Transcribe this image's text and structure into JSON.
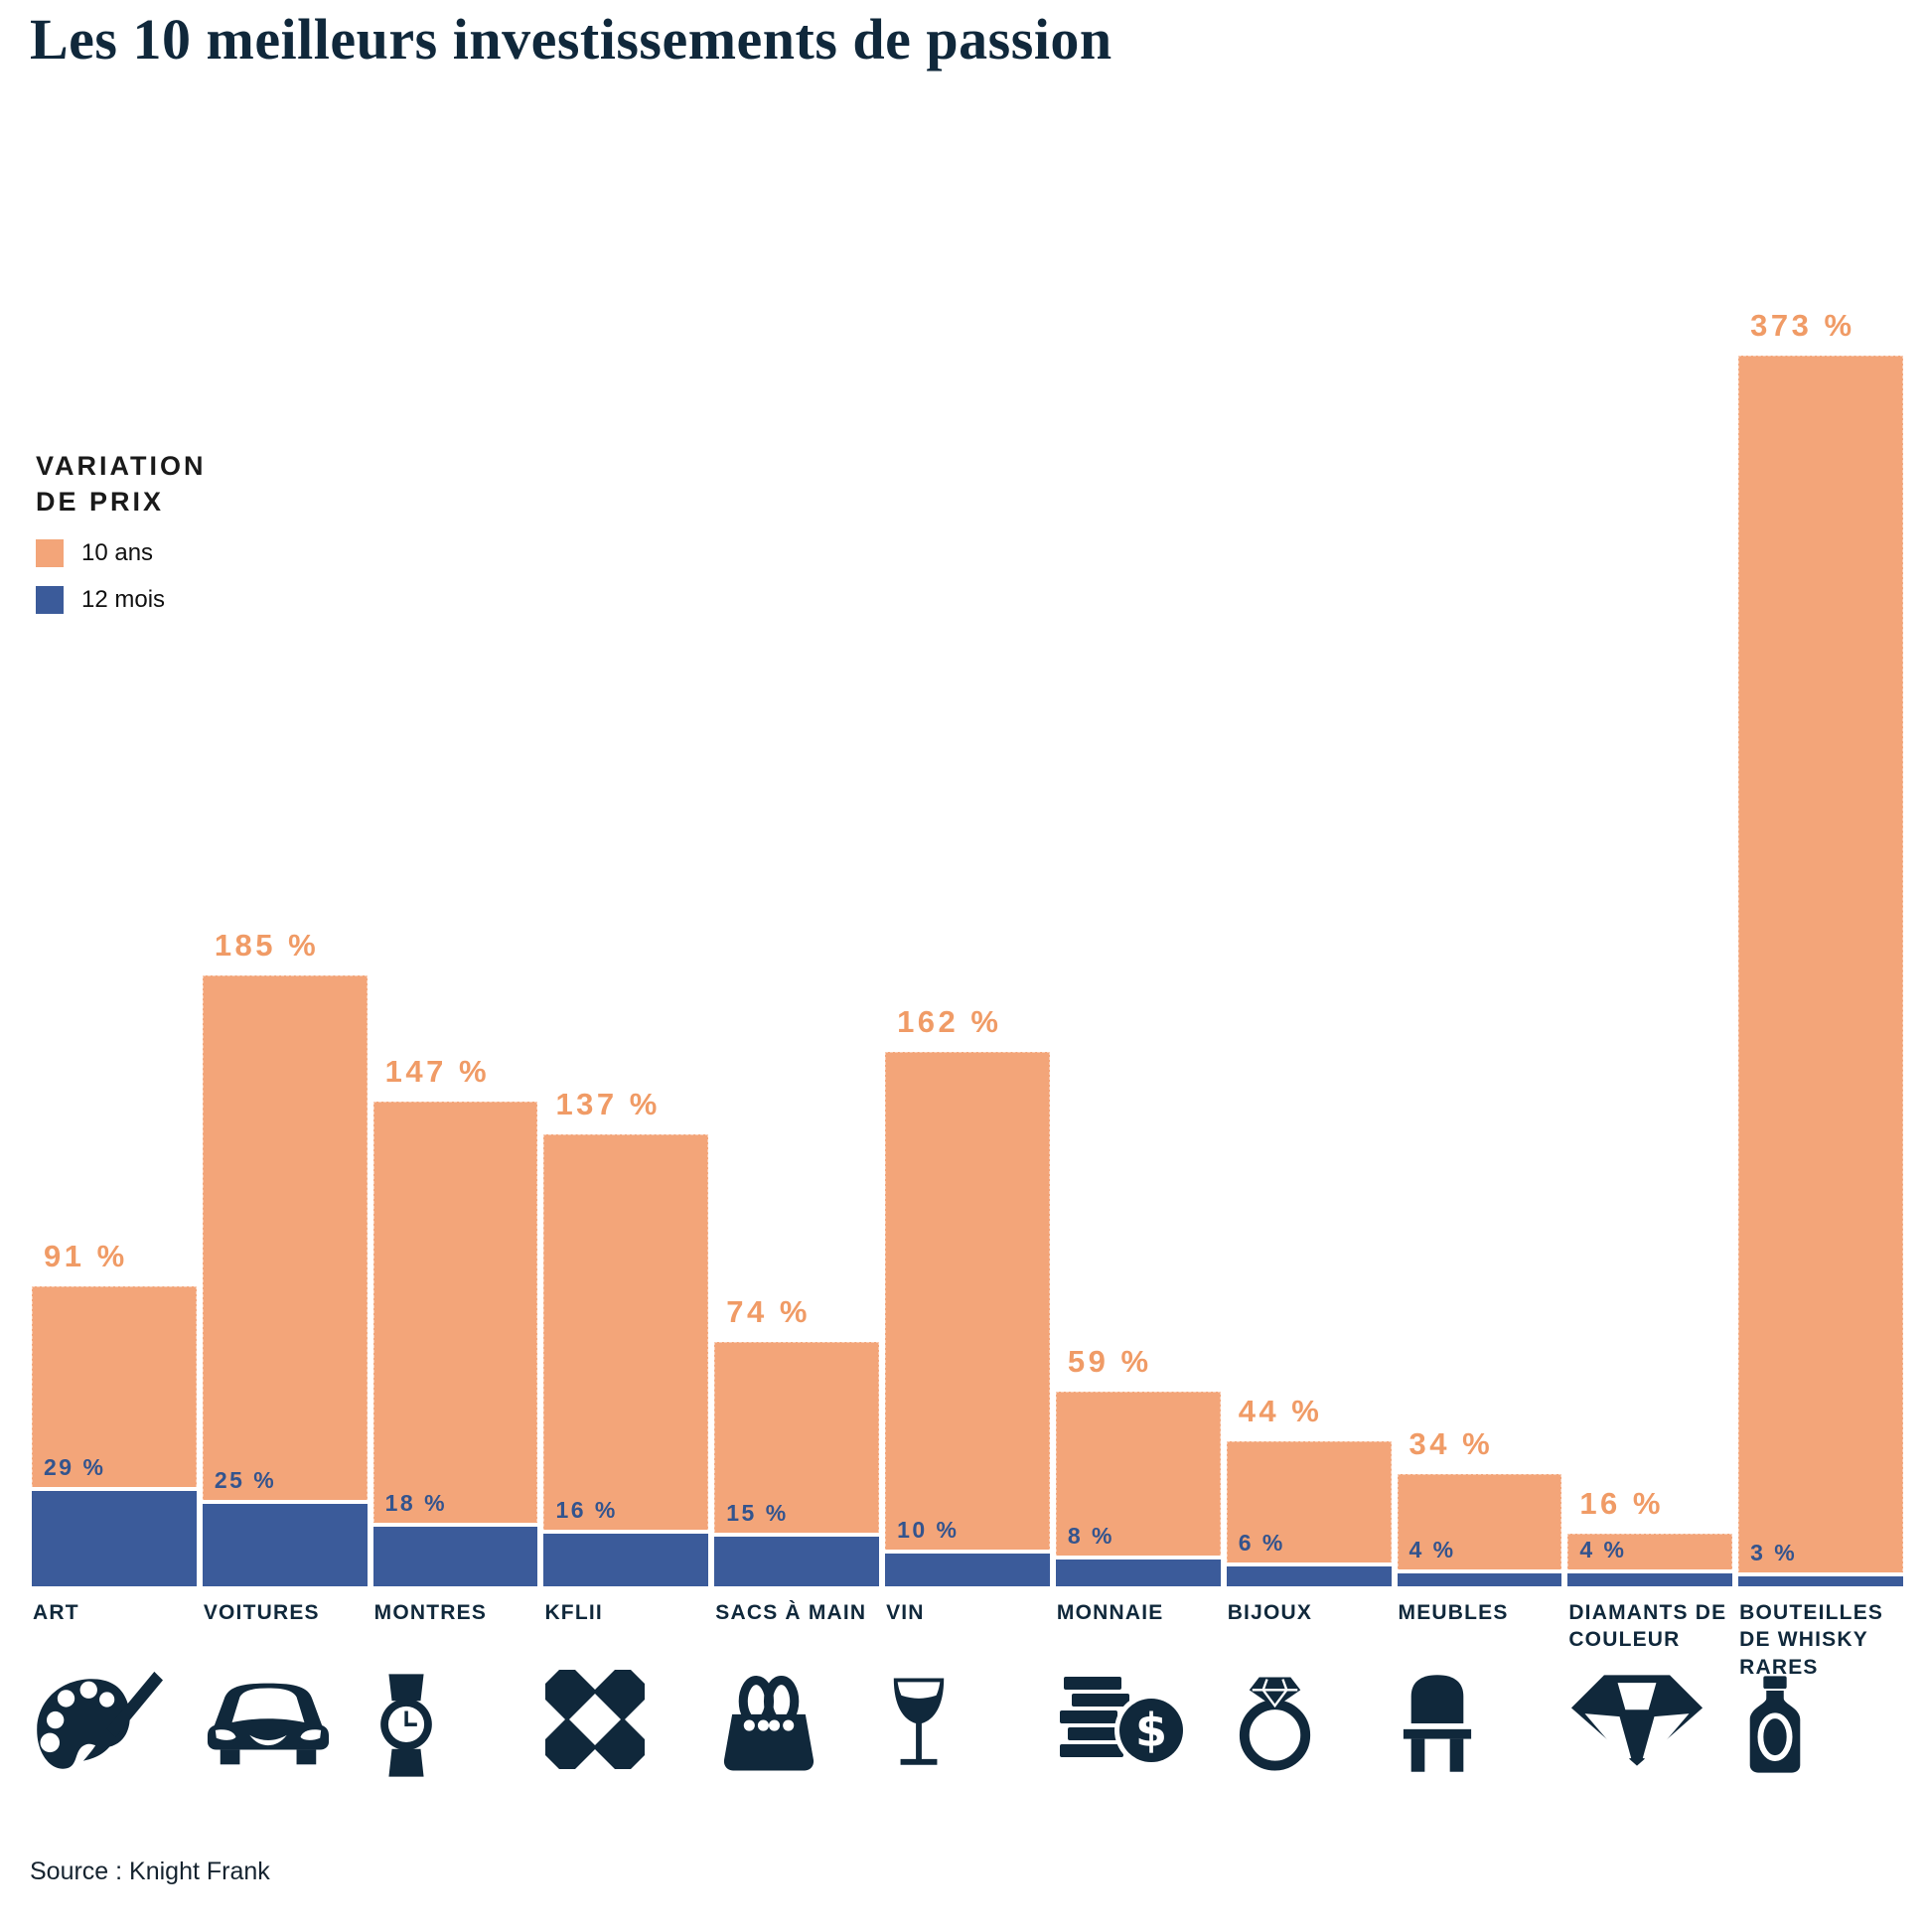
{
  "title": "Les 10 meilleurs investissements de passion",
  "legend": {
    "title_line1": "VARIATION",
    "title_line2": "DE PRIX",
    "items": [
      {
        "label": "10 ans",
        "color": "#F3A579"
      },
      {
        "label": "12 mois",
        "color": "#3B5B9A"
      }
    ]
  },
  "source": "Source : Knight Frank",
  "colors": {
    "bar_10_years": "#F3A579",
    "bar_12_months": "#3B5B9A",
    "label_10_years": "#F09B66",
    "label_12_months": "#33548E",
    "text_navy": "#10283B"
  },
  "chart_data": {
    "type": "bar",
    "title": "Les 10 meilleurs investissements de passion",
    "categories": [
      "ART",
      "VOITURES",
      "MONTRES",
      "KFLII",
      "SACS À MAIN",
      "VIN",
      "MONNAIE",
      "BIJOUX",
      "MEUBLES",
      "DIAMANTS DE COULEUR",
      "BOUTEILLES DE WHISKY RARES"
    ],
    "series": [
      {
        "name": "10 ans",
        "values": [
          91,
          185,
          147,
          137,
          74,
          162,
          59,
          44,
          34,
          16,
          373
        ]
      },
      {
        "name": "12 mois",
        "values": [
          29,
          25,
          18,
          16,
          15,
          10,
          8,
          6,
          4,
          4,
          3
        ]
      }
    ],
    "value_suffix": " %",
    "ylim": [
      0,
      373
    ],
    "grid": false,
    "legend_position": "upper-left",
    "icons": [
      "palette",
      "car",
      "watch",
      "kflii-logo",
      "handbag",
      "wine-glass",
      "coins",
      "ring",
      "chair",
      "diamond",
      "whisky-bottle"
    ]
  }
}
